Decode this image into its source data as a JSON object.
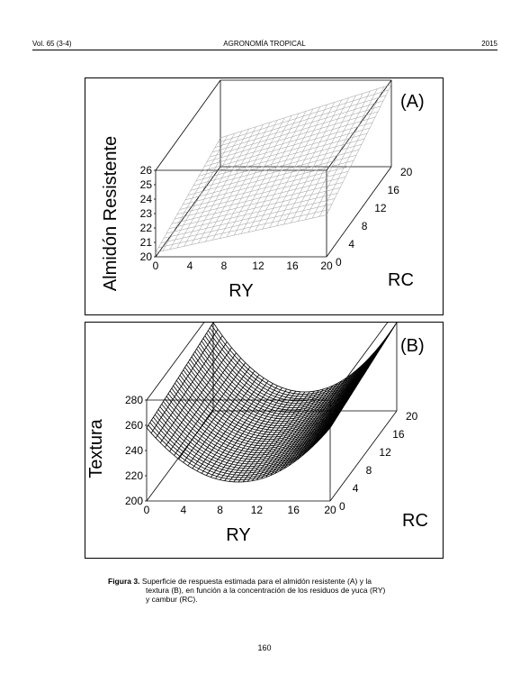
{
  "header": {
    "volume": "Vol. 65 (3-4)",
    "journal": "AGRONOMÍA TROPICAL",
    "year": "2015"
  },
  "figure": {
    "caption_label": "Figura 3.",
    "caption_lines": [
      "Superficie de respuesta estimada para el almidón resistente (A) y la",
      "textura (B), en función a la concentración de los residuos de yuca (RY)",
      "y cambur (RC)."
    ]
  },
  "chart_data": [
    {
      "type": "surface",
      "panel_label": "(A)",
      "xlabel": "RY",
      "ylabel": "RC",
      "zlabel": "Almidón Resistente",
      "x_ticks": [
        "0",
        "4",
        "8",
        "12",
        "16",
        "20"
      ],
      "y_ticks": [
        "0",
        "4",
        "8",
        "12",
        "16",
        "20"
      ],
      "z_ticks": [
        "20",
        "21",
        "22",
        "23",
        "24",
        "25",
        "26"
      ],
      "xlim": [
        0,
        20
      ],
      "ylim": [
        0,
        20
      ],
      "zlim": [
        20,
        26
      ],
      "surface_color": "#9a9a9a",
      "corner_values": {
        "x0_y0": 20.3,
        "x20_y0": 22.9,
        "x0_y20": 22.0,
        "x20_y20": 25.7
      }
    },
    {
      "type": "surface",
      "panel_label": "(B)",
      "xlabel": "RY",
      "ylabel": "RC",
      "zlabel": "Textura",
      "x_ticks": [
        "0",
        "4",
        "8",
        "12",
        "16",
        "20"
      ],
      "y_ticks": [
        "0",
        "4",
        "8",
        "12",
        "16",
        "20"
      ],
      "z_ticks": [
        "200",
        "220",
        "240",
        "260",
        "280"
      ],
      "xlim": [
        0,
        20
      ],
      "ylim": [
        0,
        20
      ],
      "zlim": [
        200,
        280
      ],
      "surface_color": "#000000",
      "corner_values": {
        "x0_y0": 258,
        "x20_y0": 262,
        "x0_y20": 270,
        "x20_y20": 272
      },
      "min_value": 215
    }
  ],
  "page_number": "160"
}
